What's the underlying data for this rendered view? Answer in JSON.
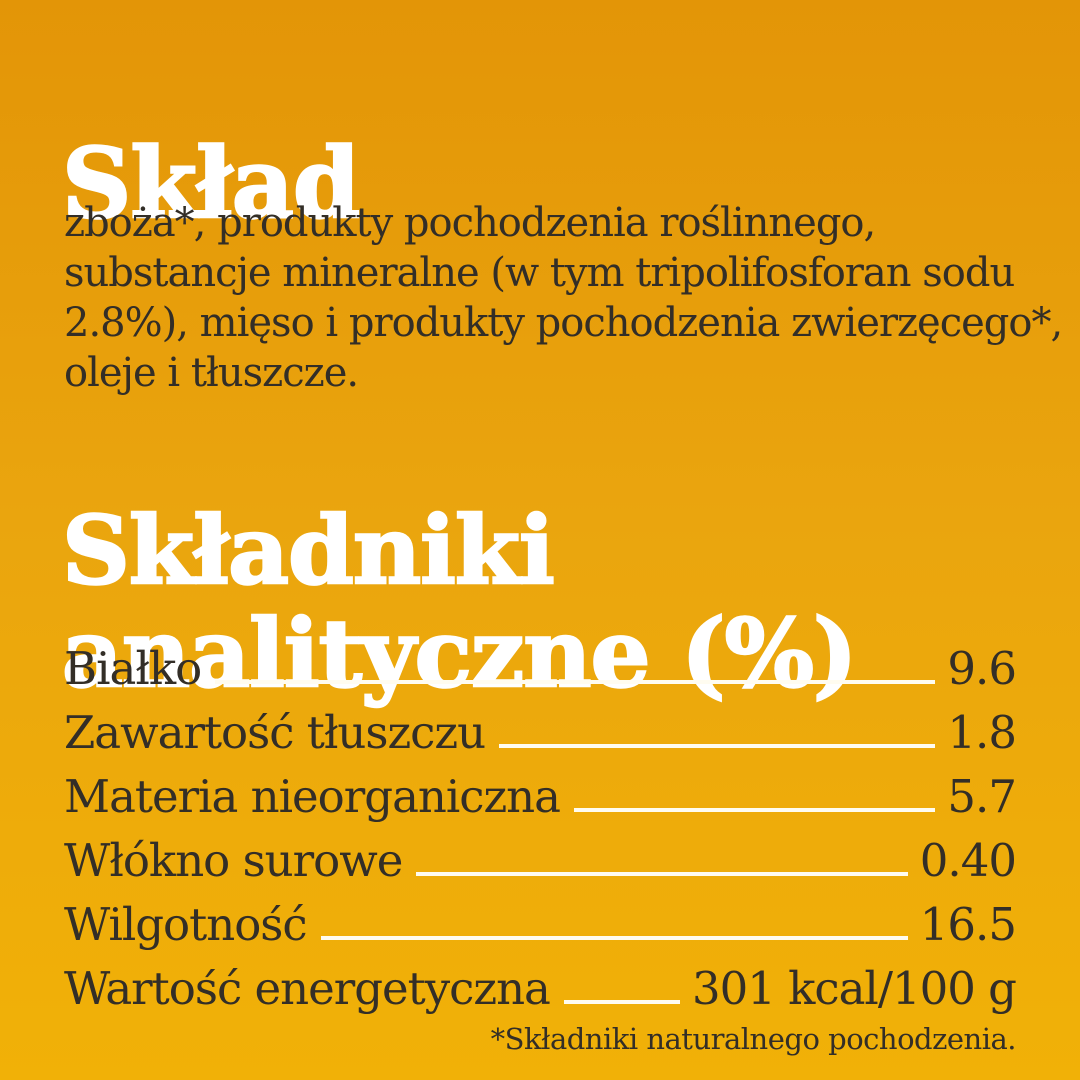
{
  "colors": {
    "background_top": "#E39507",
    "background_middle": "#EAA50E",
    "background_bottom": "#F1B107",
    "heading_text": "#FFFFFF",
    "body_text": "#332E27",
    "leader_line": "#FFFCF0"
  },
  "composition": {
    "title": "Skład",
    "lines": [
      "zboża*, produkty pochodzenia roślinnego,",
      "substancje mineralne (w tym tripolifosforan sodu",
      "2.8%), mięso i produkty pochodzenia zwierzęcego*,",
      "oleje i tłuszcze."
    ]
  },
  "analytical": {
    "title_lines": [
      "Składniki",
      "analityczne (%)"
    ],
    "rows": [
      {
        "label": "Białko",
        "value": "9.6"
      },
      {
        "label": "Zawartość tłuszczu",
        "value": "1.8"
      },
      {
        "label": "Materia nieorganiczna",
        "value": "5.7"
      },
      {
        "label": "Włókno surowe",
        "value": "0.40"
      },
      {
        "label": "Wilgotność",
        "value": "16.5"
      },
      {
        "label": "Wartość energetyczna",
        "value": "301 kcal/100 g"
      }
    ]
  },
  "footnote": {
    "text": "*Składniki naturalnego pochodzenia."
  }
}
